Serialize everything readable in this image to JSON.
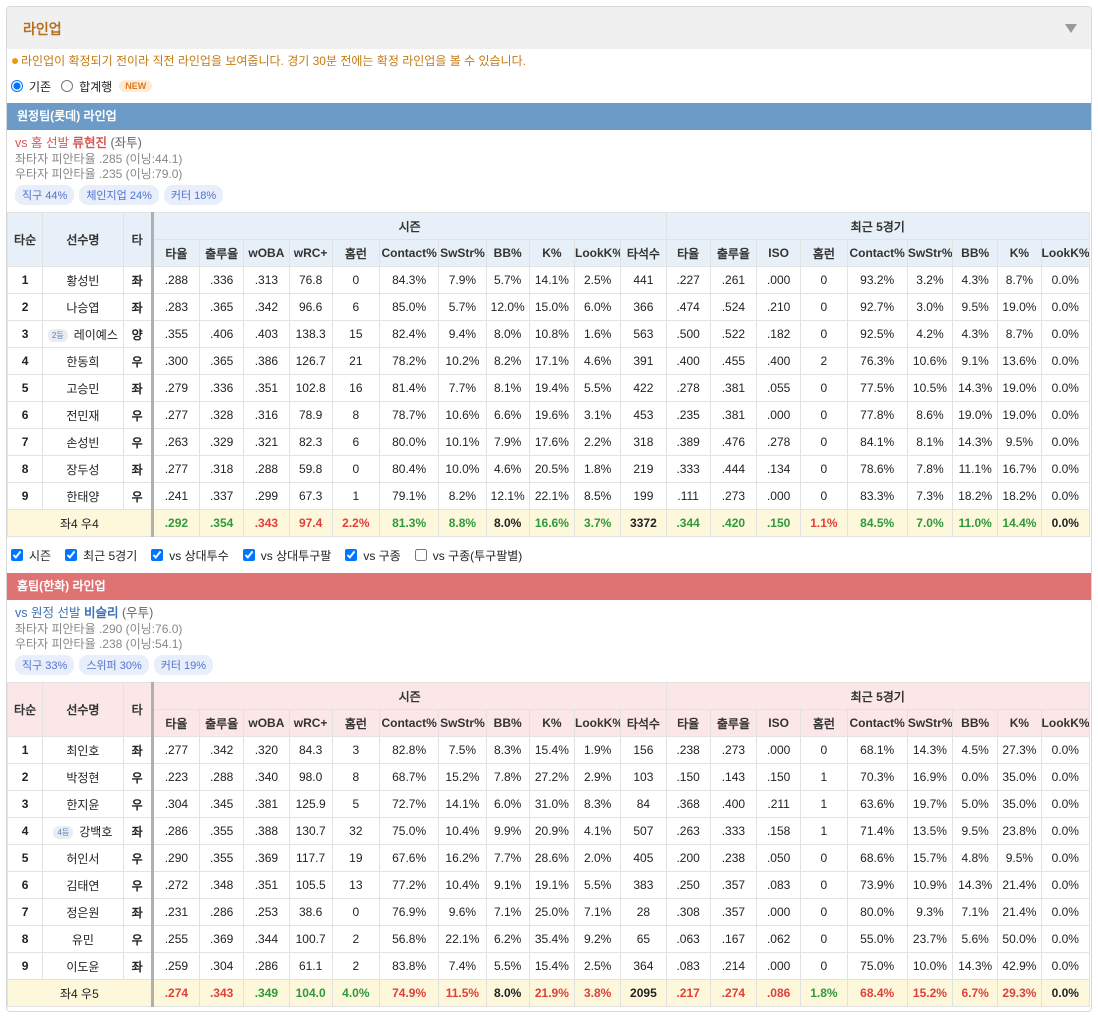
{
  "header": {
    "title": "라인업"
  },
  "notice": "라인업이 확정되기 전이라 직전 라인업을 보여줍니다. 경기 30분 전에는 확정 라인업을 볼 수 있습니다.",
  "options": [
    {
      "label": "기존",
      "checked": true
    },
    {
      "label": "합계행",
      "checked": false,
      "badge": "NEW"
    }
  ],
  "filters": [
    {
      "label": "시즌",
      "checked": true
    },
    {
      "label": "최근 5경기",
      "checked": true
    },
    {
      "label": "vs 상대투수",
      "checked": true
    },
    {
      "label": "vs 상대투구팔",
      "checked": true
    },
    {
      "label": "vs 구종",
      "checked": true
    },
    {
      "label": "vs 구종(투구팔별)",
      "checked": false
    }
  ],
  "columns": {
    "order": "타순",
    "name": "선수명",
    "hand": "타",
    "season_group": "시즌",
    "recent_group": "최근 5경기",
    "season": [
      "타율",
      "출루율",
      "wOBA",
      "wRC+",
      "홈런",
      "Contact%",
      "SwStr%",
      "BB%",
      "K%",
      "LookK%",
      "타석수"
    ],
    "recent": [
      "타율",
      "출루율",
      "ISO",
      "홈런",
      "Contact%",
      "SwStr%",
      "BB%",
      "K%",
      "LookK%"
    ]
  },
  "teams": [
    {
      "title": "원정팀(롯데) 라인업",
      "pitcher": {
        "prefix": "vs 홈 선발",
        "name": "류현진",
        "hand": "(좌투)"
      },
      "splits": [
        "좌타자 피안타율 .285 (이닝:44.1)",
        "우타자 피안타율 .235 (이닝:79.0)"
      ],
      "pitches": [
        "직구 44%",
        "체인지업 24%",
        "커터 18%"
      ],
      "rows": [
        {
          "order": "1",
          "name": "황성빈",
          "hand": "좌",
          "season": [
            ".288",
            ".336",
            ".313",
            "76.8",
            "0",
            "84.3%",
            "7.9%",
            "5.7%",
            "14.1%",
            "2.5%",
            "441"
          ],
          "recent": [
            ".227",
            ".261",
            ".000",
            "0",
            "93.2%",
            "3.2%",
            "4.3%",
            "8.7%",
            "0.0%"
          ]
        },
        {
          "order": "2",
          "name": "나승엽",
          "hand": "좌",
          "season": [
            ".283",
            ".365",
            ".342",
            "96.6",
            "6",
            "85.0%",
            "5.7%",
            "12.0%",
            "15.0%",
            "6.0%",
            "366"
          ],
          "recent": [
            ".474",
            ".524",
            ".210",
            "0",
            "92.7%",
            "3.0%",
            "9.5%",
            "19.0%",
            "0.0%"
          ]
        },
        {
          "order": "3",
          "badge": "2등",
          "name": "레이예스",
          "hand": "양",
          "season": [
            ".355",
            ".406",
            ".403",
            "138.3",
            "15",
            "82.4%",
            "9.4%",
            "8.0%",
            "10.8%",
            "1.6%",
            "563"
          ],
          "recent": [
            ".500",
            ".522",
            ".182",
            "0",
            "92.5%",
            "4.2%",
            "4.3%",
            "8.7%",
            "0.0%"
          ]
        },
        {
          "order": "4",
          "name": "한동희",
          "hand": "우",
          "season": [
            ".300",
            ".365",
            ".386",
            "126.7",
            "21",
            "78.2%",
            "10.2%",
            "8.2%",
            "17.1%",
            "4.6%",
            "391"
          ],
          "recent": [
            ".400",
            ".455",
            ".400",
            "2",
            "76.3%",
            "10.6%",
            "9.1%",
            "13.6%",
            "0.0%"
          ]
        },
        {
          "order": "5",
          "name": "고승민",
          "hand": "좌",
          "season": [
            ".279",
            ".336",
            ".351",
            "102.8",
            "16",
            "81.4%",
            "7.7%",
            "8.1%",
            "19.4%",
            "5.5%",
            "422"
          ],
          "recent": [
            ".278",
            ".381",
            ".055",
            "0",
            "77.5%",
            "10.5%",
            "14.3%",
            "19.0%",
            "0.0%"
          ]
        },
        {
          "order": "6",
          "name": "전민재",
          "hand": "우",
          "season": [
            ".277",
            ".328",
            ".316",
            "78.9",
            "8",
            "78.7%",
            "10.6%",
            "6.6%",
            "19.6%",
            "3.1%",
            "453"
          ],
          "recent": [
            ".235",
            ".381",
            ".000",
            "0",
            "77.8%",
            "8.6%",
            "19.0%",
            "19.0%",
            "0.0%"
          ]
        },
        {
          "order": "7",
          "name": "손성빈",
          "hand": "우",
          "season": [
            ".263",
            ".329",
            ".321",
            "82.3",
            "6",
            "80.0%",
            "10.1%",
            "7.9%",
            "17.6%",
            "2.2%",
            "318"
          ],
          "recent": [
            ".389",
            ".476",
            ".278",
            "0",
            "84.1%",
            "8.1%",
            "14.3%",
            "9.5%",
            "0.0%"
          ]
        },
        {
          "order": "8",
          "name": "장두성",
          "hand": "좌",
          "season": [
            ".277",
            ".318",
            ".288",
            "59.8",
            "0",
            "80.4%",
            "10.0%",
            "4.6%",
            "20.5%",
            "1.8%",
            "219"
          ],
          "recent": [
            ".333",
            ".444",
            ".134",
            "0",
            "78.6%",
            "7.8%",
            "11.1%",
            "16.7%",
            "0.0%"
          ]
        },
        {
          "order": "9",
          "name": "한태양",
          "hand": "우",
          "season": [
            ".241",
            ".337",
            ".299",
            "67.3",
            "1",
            "79.1%",
            "8.2%",
            "12.1%",
            "22.1%",
            "8.5%",
            "199"
          ],
          "recent": [
            ".111",
            ".273",
            ".000",
            "0",
            "83.3%",
            "7.3%",
            "18.2%",
            "18.2%",
            "0.0%"
          ]
        }
      ],
      "summary": {
        "label": "좌4 우4",
        "season": [
          ".292",
          ".354",
          ".343",
          "97.4",
          "2.2%",
          "81.3%",
          "8.8%",
          "8.0%",
          "16.6%",
          "3.7%",
          "3372"
        ],
        "season_colors": [
          "#2f9a3a",
          "#2f9a3a",
          "#e0403a",
          "#e0403a",
          "#e0403a",
          "#2f9a3a",
          "#2f9a3a",
          "#222222",
          "#2f9a3a",
          "#2f9a3a",
          "#222222"
        ],
        "recent": [
          ".344",
          ".420",
          ".150",
          "1.1%",
          "84.5%",
          "7.0%",
          "11.0%",
          "14.4%",
          "0.0%"
        ],
        "recent_colors": [
          "#2f9a3a",
          "#2f9a3a",
          "#2f9a3a",
          "#e0403a",
          "#2f9a3a",
          "#2f9a3a",
          "#2f9a3a",
          "#2f9a3a",
          "#222222"
        ]
      }
    },
    {
      "title": "홈팀(한화) 라인업",
      "pitcher": {
        "prefix": "vs 원정 선발",
        "name": "비슬리",
        "hand": "(우투)"
      },
      "splits": [
        "좌타자 피안타율 .290 (이닝:76.0)",
        "우타자 피안타율 .238 (이닝:54.1)"
      ],
      "pitches": [
        "직구 33%",
        "스위퍼 30%",
        "커터 19%"
      ],
      "rows": [
        {
          "order": "1",
          "name": "최인호",
          "hand": "좌",
          "season": [
            ".277",
            ".342",
            ".320",
            "84.3",
            "3",
            "82.8%",
            "7.5%",
            "8.3%",
            "15.4%",
            "1.9%",
            "156"
          ],
          "recent": [
            ".238",
            ".273",
            ".000",
            "0",
            "68.1%",
            "14.3%",
            "4.5%",
            "27.3%",
            "0.0%"
          ]
        },
        {
          "order": "2",
          "name": "박정현",
          "hand": "우",
          "season": [
            ".223",
            ".288",
            ".340",
            "98.0",
            "8",
            "68.7%",
            "15.2%",
            "7.8%",
            "27.2%",
            "2.9%",
            "103"
          ],
          "recent": [
            ".150",
            ".143",
            ".150",
            "1",
            "70.3%",
            "16.9%",
            "0.0%",
            "35.0%",
            "0.0%"
          ]
        },
        {
          "order": "3",
          "name": "한지윤",
          "hand": "우",
          "season": [
            ".304",
            ".345",
            ".381",
            "125.9",
            "5",
            "72.7%",
            "14.1%",
            "6.0%",
            "31.0%",
            "8.3%",
            "84"
          ],
          "recent": [
            ".368",
            ".400",
            ".211",
            "1",
            "63.6%",
            "19.7%",
            "5.0%",
            "35.0%",
            "0.0%"
          ]
        },
        {
          "order": "4",
          "badge": "4등",
          "name": "강백호",
          "hand": "좌",
          "season": [
            ".286",
            ".355",
            ".388",
            "130.7",
            "32",
            "75.0%",
            "10.4%",
            "9.9%",
            "20.9%",
            "4.1%",
            "507"
          ],
          "recent": [
            ".263",
            ".333",
            ".158",
            "1",
            "71.4%",
            "13.5%",
            "9.5%",
            "23.8%",
            "0.0%"
          ]
        },
        {
          "order": "5",
          "name": "허인서",
          "hand": "우",
          "season": [
            ".290",
            ".355",
            ".369",
            "117.7",
            "19",
            "67.6%",
            "16.2%",
            "7.7%",
            "28.6%",
            "2.0%",
            "405"
          ],
          "recent": [
            ".200",
            ".238",
            ".050",
            "0",
            "68.6%",
            "15.7%",
            "4.8%",
            "9.5%",
            "0.0%"
          ]
        },
        {
          "order": "6",
          "name": "김태연",
          "hand": "우",
          "season": [
            ".272",
            ".348",
            ".351",
            "105.5",
            "13",
            "77.2%",
            "10.4%",
            "9.1%",
            "19.1%",
            "5.5%",
            "383"
          ],
          "recent": [
            ".250",
            ".357",
            ".083",
            "0",
            "73.9%",
            "10.9%",
            "14.3%",
            "21.4%",
            "0.0%"
          ]
        },
        {
          "order": "7",
          "name": "정은원",
          "hand": "좌",
          "season": [
            ".231",
            ".286",
            ".253",
            "38.6",
            "0",
            "76.9%",
            "9.6%",
            "7.1%",
            "25.0%",
            "7.1%",
            "28"
          ],
          "recent": [
            ".308",
            ".357",
            ".000",
            "0",
            "80.0%",
            "9.3%",
            "7.1%",
            "21.4%",
            "0.0%"
          ]
        },
        {
          "order": "8",
          "name": "유민",
          "hand": "우",
          "season": [
            ".255",
            ".369",
            ".344",
            "100.7",
            "2",
            "56.8%",
            "22.1%",
            "6.2%",
            "35.4%",
            "9.2%",
            "65"
          ],
          "recent": [
            ".063",
            ".167",
            ".062",
            "0",
            "55.0%",
            "23.7%",
            "5.6%",
            "50.0%",
            "0.0%"
          ]
        },
        {
          "order": "9",
          "name": "이도윤",
          "hand": "좌",
          "season": [
            ".259",
            ".304",
            ".286",
            "61.1",
            "2",
            "83.8%",
            "7.4%",
            "5.5%",
            "15.4%",
            "2.5%",
            "364"
          ],
          "recent": [
            ".083",
            ".214",
            ".000",
            "0",
            "75.0%",
            "10.0%",
            "14.3%",
            "42.9%",
            "0.0%"
          ]
        }
      ],
      "summary": {
        "label": "좌4 우5",
        "season": [
          ".274",
          ".343",
          ".349",
          "104.0",
          "4.0%",
          "74.9%",
          "11.5%",
          "8.0%",
          "21.9%",
          "3.8%",
          "2095"
        ],
        "season_colors": [
          "#e0403a",
          "#e0403a",
          "#2f9a3a",
          "#2f9a3a",
          "#2f9a3a",
          "#e0403a",
          "#e0403a",
          "#222222",
          "#e0403a",
          "#e0403a",
          "#222222"
        ],
        "recent": [
          ".217",
          ".274",
          ".086",
          "1.8%",
          "68.4%",
          "15.2%",
          "6.7%",
          "29.3%",
          "0.0%"
        ],
        "recent_colors": [
          "#e0403a",
          "#e0403a",
          "#e0403a",
          "#2f9a3a",
          "#e0403a",
          "#e0403a",
          "#e0403a",
          "#e0403a",
          "#222222"
        ]
      }
    }
  ]
}
